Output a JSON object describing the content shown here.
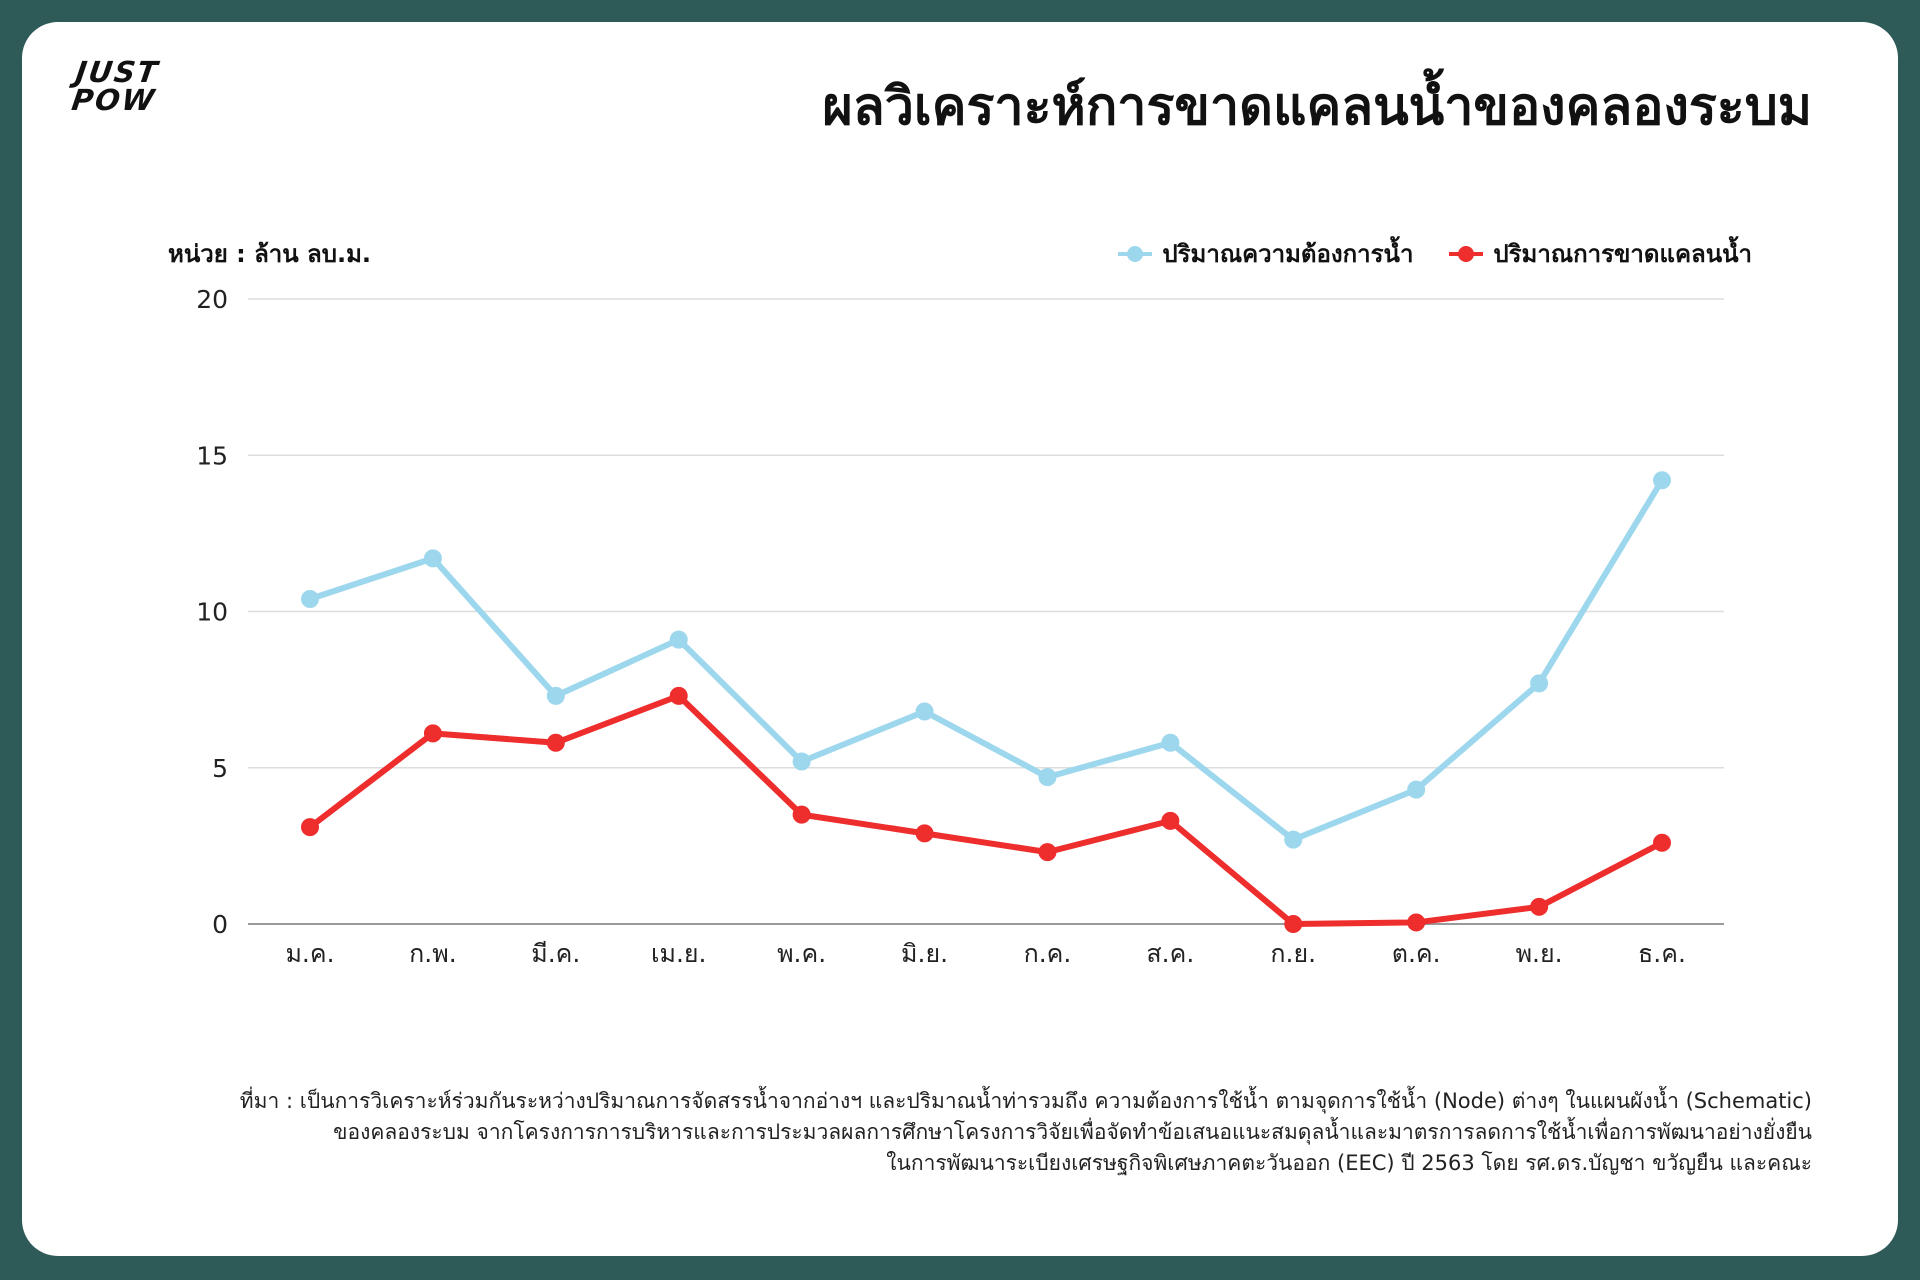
{
  "logo": {
    "line1": "JUST",
    "line2": "POW"
  },
  "title": "ผลวิเคราะห์การขาดแคลนน้ำของคลองระบม",
  "unit_label": "หน่วย : ล้าน ลบ.ม.",
  "colors": {
    "demand": "#9dd7ed",
    "shortage": "#ee2d2d",
    "grid": "#dddddd",
    "axis": "#999999"
  },
  "chart_data": {
    "type": "line",
    "categories": [
      "ม.ค.",
      "ก.พ.",
      "มี.ค.",
      "เม.ย.",
      "พ.ค.",
      "มิ.ย.",
      "ก.ค.",
      "ส.ค.",
      "ก.ย.",
      "ต.ค.",
      "พ.ย.",
      "ธ.ค."
    ],
    "series": [
      {
        "name": "ปริมาณความต้องการน้ำ",
        "color": "#9dd7ed",
        "values": [
          10.4,
          11.7,
          7.3,
          9.1,
          5.2,
          6.8,
          4.7,
          5.8,
          2.7,
          4.3,
          7.7,
          14.2
        ]
      },
      {
        "name": "ปริมาณการขาดแคลนน้ำ",
        "color": "#ee2d2d",
        "values": [
          3.1,
          6.1,
          5.8,
          7.3,
          3.5,
          2.9,
          2.3,
          3.3,
          0.0,
          0.05,
          0.55,
          2.6
        ]
      }
    ],
    "ylim": [
      0,
      20
    ],
    "yticks": [
      "0",
      "5",
      "10",
      "15",
      "20"
    ],
    "grid": true,
    "legend_position": "top-right"
  },
  "source_lines": [
    "ที่มา : เป็นการวิเคราะห์ร่วมกันระหว่างปริมาณการจัดสรรน้ำจากอ่างฯ และปริมาณน้ำท่ารวมถึง ความต้องการใช้น้ำ ตามจุดการใช้น้ำ (Node) ต่างๆ ในแผนผังน้ำ (Schematic)",
    "ของคลองระบม จากโครงการการบริหารและการประมวลผลการศึกษาโครงการวิจัยเพื่อจัดทำข้อเสนอแนะสมดุลน้ำและมาตรการลดการใช้น้ำเพื่อการพัฒนาอย่างยั่งยืน",
    "ในการพัฒนาระเบียงเศรษฐกิจพิเศษภาคตะวันออก (EEC) ปี 2563 โดย รศ.ดร.บัญชา ขวัญยืน และคณะ"
  ]
}
